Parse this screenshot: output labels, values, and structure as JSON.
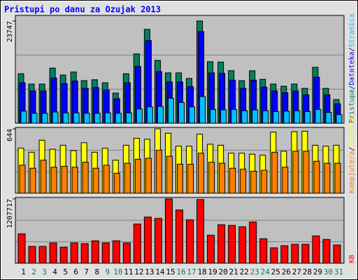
{
  "title": "Pristupi po danu za Ozujak 2013",
  "separator": "/",
  "chart_data": [
    {
      "type": "bar",
      "ylim": [
        0,
        23747
      ],
      "yticks": [
        23747
      ],
      "series": [
        {
          "name": "Pristupa",
          "color": "#008060",
          "values": [
            11500,
            9100,
            9100,
            12800,
            11200,
            11900,
            9900,
            10100,
            9400,
            7000,
            11500,
            16100,
            21800,
            14600,
            11700,
            11700,
            10400,
            23747,
            14300,
            14200,
            12200,
            9900,
            12200,
            10200,
            9100,
            8600,
            9100,
            8100,
            13000,
            8100,
            5500
          ]
        },
        {
          "name": "Datoteka",
          "color": "#0000ff",
          "values": [
            9400,
            7500,
            7500,
            10500,
            9200,
            9800,
            8100,
            8300,
            7700,
            5700,
            9400,
            13200,
            19200,
            12000,
            9600,
            9600,
            8500,
            21300,
            11700,
            11600,
            10000,
            8100,
            10000,
            8400,
            7500,
            7100,
            7500,
            6600,
            10700,
            6600,
            4500
          ]
        },
        {
          "name": "Stranica",
          "color": "#00c0ff",
          "values": [
            2800,
            2300,
            2300,
            2600,
            2400,
            2400,
            2300,
            2300,
            2400,
            2300,
            2400,
            3300,
            3800,
            3900,
            5800,
            4800,
            3800,
            6200,
            3200,
            3100,
            3200,
            2900,
            3100,
            2900,
            2700,
            2800,
            2900,
            2700,
            3200,
            2500,
            2000
          ]
        }
      ]
    },
    {
      "type": "bar",
      "ylim": [
        0,
        644
      ],
      "yticks": [
        644
      ],
      "legend_reverse": true,
      "series": [
        {
          "name": "Posjeta",
          "color": "#ffff00",
          "values": [
            450,
            410,
            530,
            440,
            480,
            425,
            505,
            410,
            450,
            330,
            480,
            550,
            540,
            644,
            600,
            470,
            470,
            590,
            490,
            480,
            400,
            400,
            390,
            380,
            610,
            420,
            615,
            620,
            480,
            470,
            480
          ]
        },
        {
          "name": "Kompjutera",
          "color": "#ff8000",
          "values": [
            280,
            250,
            330,
            260,
            270,
            260,
            310,
            250,
            280,
            200,
            300,
            340,
            350,
            430,
            370,
            290,
            290,
            400,
            310,
            300,
            250,
            240,
            220,
            230,
            410,
            260,
            420,
            420,
            320,
            300,
            300
          ]
        }
      ]
    },
    {
      "type": "bar",
      "ylim": [
        0,
        1207717
      ],
      "yticks": [
        1207717
      ],
      "categories": [
        "1",
        "2",
        "3",
        "4",
        "5",
        "6",
        "7",
        "8",
        "9",
        "10",
        "11",
        "12",
        "13",
        "14",
        "15",
        "16",
        "17",
        "18",
        "19",
        "20",
        "21",
        "22",
        "23",
        "24",
        "25",
        "26",
        "27",
        "28",
        "29",
        "30",
        "31"
      ],
      "category_colors": [
        "#000000",
        "#008060",
        "#008060",
        "#000000",
        "#000000",
        "#000000",
        "#000000",
        "#000000",
        "#008060",
        "#008060",
        "#000000",
        "#000000",
        "#000000",
        "#000000",
        "#000000",
        "#008060",
        "#008060",
        "#000000",
        "#000000",
        "#000000",
        "#000000",
        "#000000",
        "#008060",
        "#008060",
        "#000000",
        "#000000",
        "#000000",
        "#000000",
        "#000000",
        "#008060",
        "#008060"
      ],
      "series": [
        {
          "name": "KB",
          "color": "#ff0000",
          "values": [
            551000,
            315000,
            315000,
            381000,
            302000,
            381000,
            367000,
            420000,
            381000,
            420000,
            381000,
            735000,
            866000,
            840000,
            1207717,
            998000,
            814000,
            1194000,
            525000,
            722000,
            709000,
            683000,
            774000,
            459000,
            289000,
            328000,
            354000,
            354000,
            512000,
            446000,
            341000
          ]
        }
      ]
    }
  ]
}
